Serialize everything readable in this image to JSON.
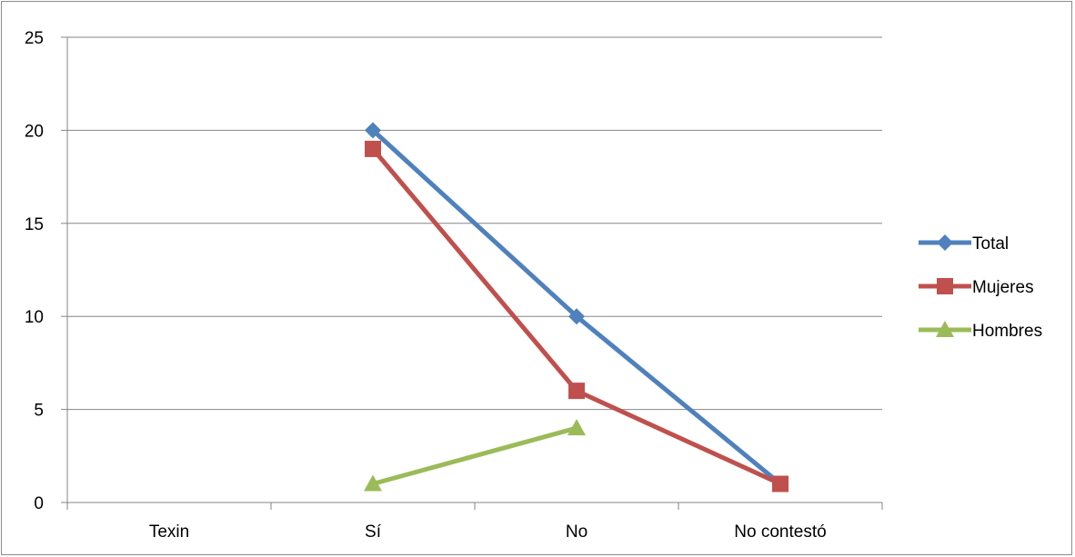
{
  "chart_data": {
    "type": "line",
    "title": "",
    "xlabel": "",
    "ylabel": "",
    "categories": [
      "Texin",
      "Sí",
      "No",
      "No contestó"
    ],
    "ylim": [
      0,
      25
    ],
    "yticks": [
      0,
      5,
      10,
      15,
      20,
      25
    ],
    "grid": true,
    "legend_position": "right",
    "series": [
      {
        "name": "Total",
        "color": "#4F81BD",
        "marker": "diamond",
        "values": [
          null,
          20,
          10,
          1
        ]
      },
      {
        "name": "Mujeres",
        "color": "#C0504D",
        "marker": "square",
        "values": [
          null,
          19,
          6,
          1
        ]
      },
      {
        "name": "Hombres",
        "color": "#9BBB59",
        "marker": "triangle",
        "values": [
          null,
          1,
          4,
          null
        ]
      }
    ]
  }
}
